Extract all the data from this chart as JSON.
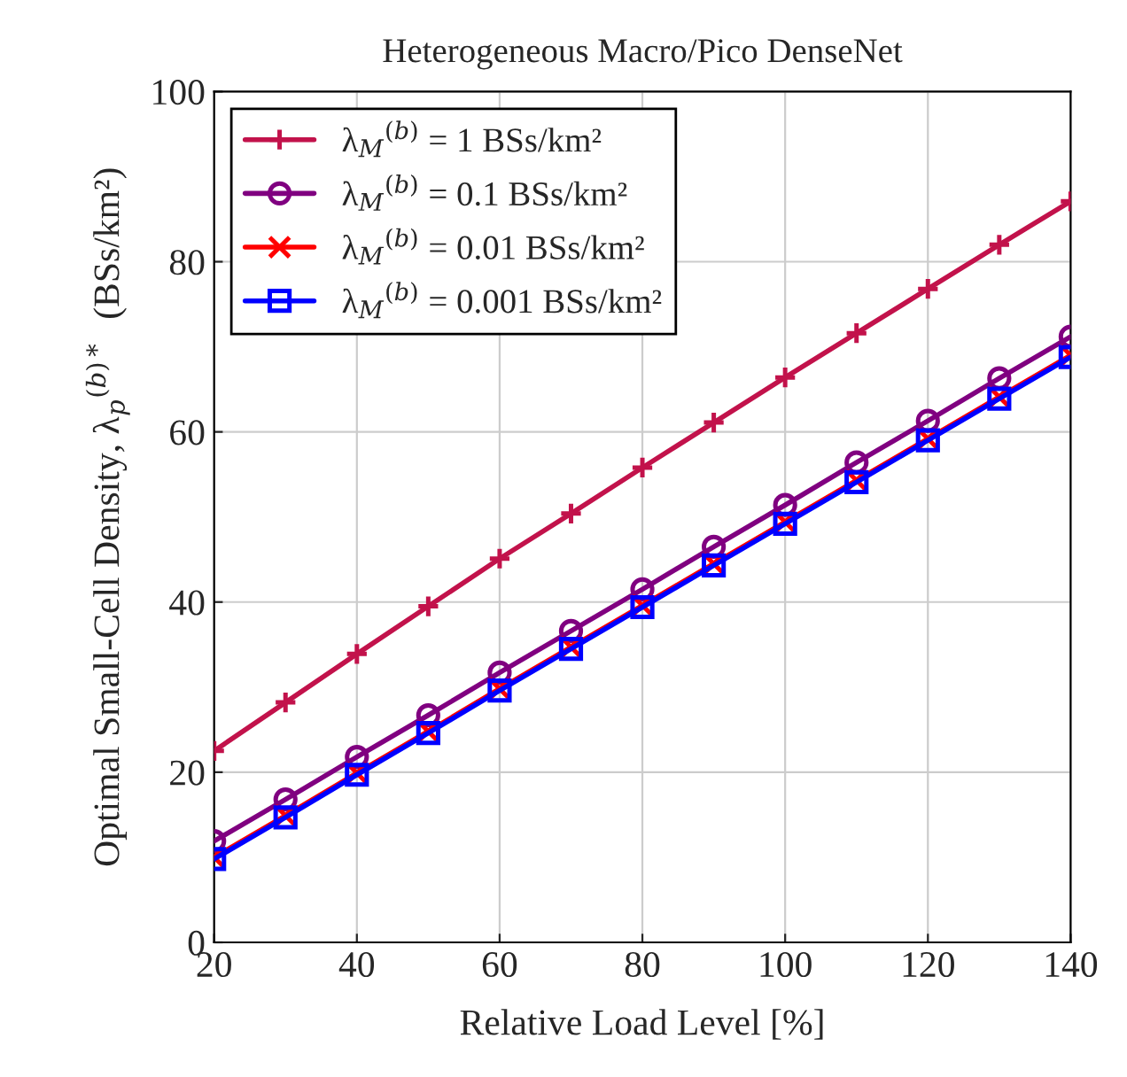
{
  "chart_data": {
    "type": "line",
    "title": "Heterogeneous Macro/Pico DenseNet",
    "xlabel": "Relative Load Level [%]",
    "ylabel": "Optimal Small-Cell Density, λ$_{p}$$^{(b)*}$  (BSs/km²)",
    "x": [
      20,
      30,
      40,
      50,
      60,
      70,
      80,
      90,
      100,
      110,
      120,
      130,
      140
    ],
    "series": [
      {
        "name": "λ$_{M}$$^{(b)}$ = 1 BSs/km²",
        "color": "#c2124b",
        "marker": "plus",
        "values": [
          22.5,
          28.2,
          33.9,
          39.5,
          45.1,
          50.4,
          55.8,
          61.1,
          66.4,
          71.6,
          76.8,
          82.0,
          87.1
        ]
      },
      {
        "name": "λ$_{M}$$^{(b)}$ = 0.1 BSs/km²",
        "color": "#800080",
        "marker": "circle",
        "values": [
          11.9,
          16.8,
          21.8,
          26.7,
          31.7,
          36.6,
          41.5,
          46.5,
          51.4,
          56.4,
          61.3,
          66.3,
          71.2
        ]
      },
      {
        "name": "λ$_{M}$$^{(b)}$ = 0.01 BSs/km²",
        "color": "#ff0000",
        "marker": "cross",
        "values": [
          10.0,
          14.9,
          19.9,
          24.8,
          29.8,
          34.7,
          39.6,
          44.5,
          49.4,
          54.3,
          59.2,
          64.1,
          69.0
        ]
      },
      {
        "name": "λ$_{M}$$^{(b)}$ = 0.001 BSs/km²",
        "color": "#0000ff",
        "marker": "square",
        "values": [
          9.8,
          14.7,
          19.7,
          24.6,
          29.6,
          34.5,
          39.4,
          44.3,
          49.2,
          54.1,
          59.0,
          63.9,
          68.8
        ]
      }
    ],
    "xlim": [
      20,
      140
    ],
    "xticks": [
      20,
      40,
      60,
      80,
      100,
      120,
      140
    ],
    "ylim": [
      0,
      100
    ],
    "yticks": [
      0,
      20,
      40,
      60,
      80,
      100
    ],
    "grid": true,
    "legend": "top left",
    "line_style": "solid"
  }
}
